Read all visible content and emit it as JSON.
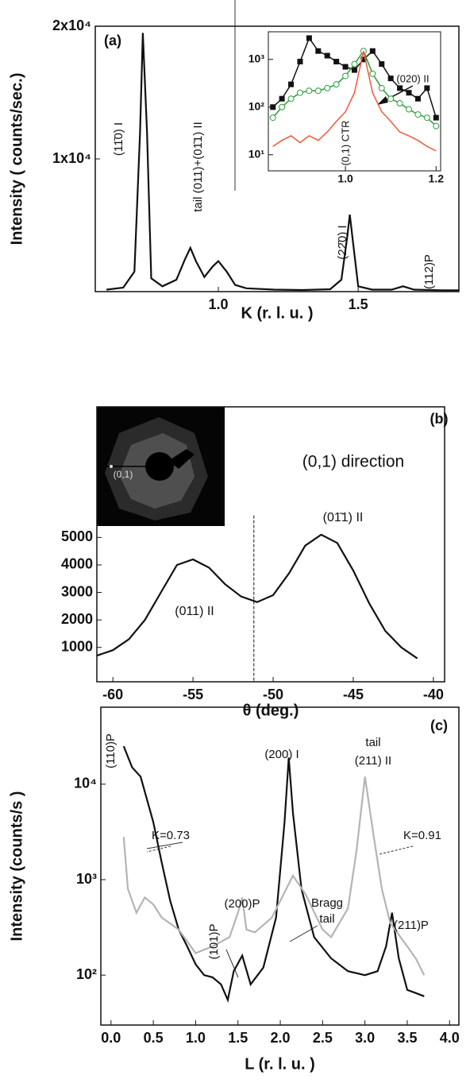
{
  "chart_data": [
    {
      "type": "line",
      "panel": "(a)",
      "x_label": "K (r. l. u. )",
      "y_label": "Intensity ( counts/sec.)",
      "xlim": [
        0.56,
        1.86
      ],
      "ylim": [
        0,
        20000
      ],
      "xticks": [
        {
          "value": 1,
          "label": "1.0"
        },
        1.5
      ],
      "yticks": [
        {
          "value": 10000,
          "label": "1x10⁴"
        },
        {
          "value": 20000,
          "label": "2x10⁴"
        }
      ],
      "annotations": [
        "(11̄0) I",
        "tail (011)+(01̄1) II",
        "(22̄0) I",
        "(112)P"
      ],
      "series": [
        {
          "color": "#111111",
          "x": [
            0.6,
            0.66,
            0.7,
            0.72,
            0.73,
            0.745,
            0.76,
            0.8,
            0.85,
            0.88,
            0.9,
            0.92,
            0.95,
            0.98,
            1.0,
            1.03,
            1.06,
            1.1,
            1.2,
            1.3,
            1.4,
            1.44,
            1.46,
            1.47,
            1.48,
            1.5,
            1.55,
            1.62,
            1.66,
            1.7,
            1.8,
            1.86
          ],
          "values": [
            150,
            300,
            1500,
            12000,
            19500,
            12000,
            1000,
            400,
            900,
            2400,
            3300,
            2300,
            1100,
            1900,
            2300,
            1500,
            500,
            250,
            150,
            120,
            180,
            900,
            4000,
            5800,
            4000,
            400,
            150,
            150,
            400,
            150,
            100,
            100
          ]
        }
      ]
    },
    {
      "type": "line",
      "log_y": true,
      "xlim": [
        0.83,
        1.21
      ],
      "ylim": [
        4.6,
        3800
      ],
      "xticks": [
        {
          "value": 1,
          "label": "1.0"
        },
        1.2
      ],
      "yticks": [
        {
          "value": 10,
          "label": "10¹"
        },
        {
          "value": 100,
          "label": "10²"
        },
        {
          "value": 1000,
          "label": "10³"
        }
      ],
      "annotations": [
        "(0,1) CTR",
        "(020) II"
      ],
      "series": [
        {
          "color": "#111111",
          "marker": "square",
          "x": [
            0.84,
            0.86,
            0.88,
            0.9,
            0.92,
            0.94,
            0.96,
            0.98,
            1.0,
            1.02,
            1.04,
            1.06,
            1.08,
            1.1,
            1.12,
            1.14,
            1.16,
            1.18,
            1.2
          ],
          "values": [
            100,
            150,
            300,
            900,
            2800,
            1500,
            1200,
            900,
            700,
            600,
            1000,
            1500,
            800,
            400,
            250,
            200,
            150,
            250,
            60
          ]
        },
        {
          "color": "#2a9d3a",
          "marker": "circle",
          "x": [
            0.84,
            0.86,
            0.88,
            0.9,
            0.92,
            0.94,
            0.96,
            0.98,
            1.0,
            1.02,
            1.04,
            1.06,
            1.08,
            1.1,
            1.12,
            1.14,
            1.16,
            1.18,
            1.2
          ],
          "values": [
            60,
            100,
            150,
            200,
            220,
            220,
            250,
            300,
            450,
            800,
            1500,
            500,
            250,
            150,
            120,
            90,
            70,
            60,
            40
          ]
        },
        {
          "color": "#f05a3a",
          "x": [
            0.84,
            0.86,
            0.88,
            0.9,
            0.92,
            0.94,
            0.96,
            0.98,
            1.0,
            1.02,
            1.04,
            1.06,
            1.08,
            1.1,
            1.12,
            1.14,
            1.16,
            1.18,
            1.2
          ],
          "values": [
            15,
            20,
            25,
            18,
            25,
            20,
            30,
            50,
            80,
            200,
            1500,
            200,
            80,
            50,
            30,
            25,
            20,
            15,
            12
          ]
        }
      ]
    },
    {
      "type": "line",
      "panel": "(b)",
      "x_label": "θ (deg.)",
      "image_label": "(0,1)",
      "xlim": [
        -61,
        -39.3
      ],
      "ylim": [
        -250,
        9750
      ],
      "xticks": [
        -60,
        -55,
        -50,
        -45,
        -40
      ],
      "yticks": [
        1000,
        2000,
        3000,
        4000,
        5000
      ],
      "vline": -51.2,
      "annotations": [
        "(0,1) direction",
        "(01̄1) II",
        "(011) II"
      ],
      "series": [
        {
          "color": "#111111",
          "x": [
            -61,
            -60,
            -59,
            -58,
            -57,
            -56,
            -55,
            -54,
            -53,
            -52,
            -51,
            -50,
            -49,
            -48,
            -47,
            -46,
            -45,
            -44,
            -43,
            -42,
            -41
          ],
          "values": [
            700,
            900,
            1300,
            2000,
            3000,
            4000,
            4200,
            3900,
            3300,
            2850,
            2650,
            2900,
            3700,
            4700,
            5100,
            4800,
            3800,
            2600,
            1600,
            1000,
            600
          ]
        }
      ]
    },
    {
      "type": "line",
      "panel": "(c)",
      "log_y": true,
      "x_label": "L (r. l. u. )",
      "y_label": "Intensity (counts/s )",
      "xlim": [
        -0.12,
        4.11
      ],
      "ylim": [
        30,
        64000
      ],
      "xticks": [
        {
          "value": 0,
          "label": "0.0"
        },
        0.5,
        {
          "value": 1,
          "label": "1.0"
        },
        1.5,
        {
          "value": 2,
          "label": "2.0"
        },
        2.5,
        {
          "value": 3,
          "label": "3.0"
        },
        3.5,
        {
          "value": 4,
          "label": "4.0"
        }
      ],
      "yticks": [
        {
          "value": 100,
          "label": "10²"
        },
        {
          "value": 1000,
          "label": "10³"
        },
        {
          "value": 10000,
          "label": "10⁴"
        }
      ],
      "annotations": [
        "(110)P",
        "K=0.73",
        "(101)P",
        "(200)P",
        "(200) I",
        "Bragg",
        "tail",
        "tail",
        "(211) II",
        "K=0.91",
        "(211)P"
      ],
      "series": [
        {
          "color": "#111111",
          "x": [
            0.15,
            0.25,
            0.35,
            0.5,
            0.6,
            0.7,
            0.8,
            0.9,
            1.0,
            1.1,
            1.2,
            1.3,
            1.38,
            1.45,
            1.55,
            1.65,
            1.8,
            1.95,
            2.05,
            2.1,
            2.15,
            2.25,
            2.4,
            2.6,
            2.8,
            3.0,
            3.15,
            3.25,
            3.32,
            3.4,
            3.5,
            3.6,
            3.7
          ],
          "values": [
            25000,
            15000,
            12000,
            4000,
            1500,
            600,
            300,
            200,
            130,
            100,
            95,
            80,
            55,
            110,
            160,
            80,
            120,
            400,
            4000,
            19000,
            5000,
            800,
            250,
            150,
            110,
            100,
            110,
            200,
            450,
            150,
            70,
            65,
            60
          ]
        },
        {
          "color": "#b4b4b4",
          "x": [
            0.15,
            0.2,
            0.3,
            0.4,
            0.5,
            0.6,
            0.8,
            1.0,
            1.2,
            1.4,
            1.5,
            1.55,
            1.6,
            1.7,
            1.9,
            2.1,
            2.15,
            2.3,
            2.5,
            2.6,
            2.8,
            2.9,
            3.0,
            3.1,
            3.2,
            3.3,
            3.5,
            3.6,
            3.7
          ],
          "values": [
            2800,
            800,
            450,
            650,
            550,
            400,
            300,
            170,
            200,
            250,
            450,
            650,
            300,
            280,
            400,
            900,
            1100,
            700,
            300,
            250,
            500,
            2000,
            12000,
            3000,
            800,
            350,
            200,
            150,
            100
          ]
        }
      ]
    }
  ]
}
